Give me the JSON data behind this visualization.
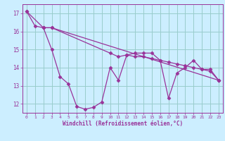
{
  "xlabel": "Windchill (Refroidissement éolien,°C)",
  "background_color": "#cceeff",
  "grid_color": "#99cccc",
  "line_color": "#993399",
  "xlim": [
    -0.5,
    23.5
  ],
  "ylim": [
    11.5,
    17.5
  ],
  "yticks": [
    12,
    13,
    14,
    15,
    16,
    17
  ],
  "xticks": [
    0,
    1,
    2,
    3,
    4,
    5,
    6,
    7,
    8,
    9,
    10,
    11,
    12,
    13,
    14,
    15,
    16,
    17,
    18,
    19,
    20,
    21,
    22,
    23
  ],
  "series1_x": [
    0,
    1,
    2,
    3,
    4,
    5,
    6,
    7,
    8,
    9,
    10,
    11,
    12,
    13,
    14,
    15,
    16,
    17,
    18,
    19,
    20,
    21,
    22,
    23
  ],
  "series1_y": [
    17.1,
    16.3,
    16.2,
    15.0,
    13.5,
    13.1,
    11.85,
    11.7,
    11.8,
    12.1,
    14.0,
    13.3,
    14.7,
    14.8,
    14.8,
    14.8,
    14.4,
    12.3,
    13.7,
    14.0,
    14.4,
    13.9,
    13.9,
    13.3
  ],
  "series2_x": [
    0,
    2,
    3,
    23
  ],
  "series2_y": [
    17.1,
    16.2,
    16.2,
    13.3
  ],
  "series3_x": [
    2,
    3,
    10,
    11,
    12,
    13,
    14,
    15,
    16,
    17,
    18,
    19,
    20,
    21,
    22,
    23
  ],
  "series3_y": [
    16.2,
    16.2,
    14.8,
    14.6,
    14.7,
    14.6,
    14.6,
    14.5,
    14.4,
    14.3,
    14.2,
    14.1,
    14.0,
    13.9,
    13.8,
    13.3
  ]
}
